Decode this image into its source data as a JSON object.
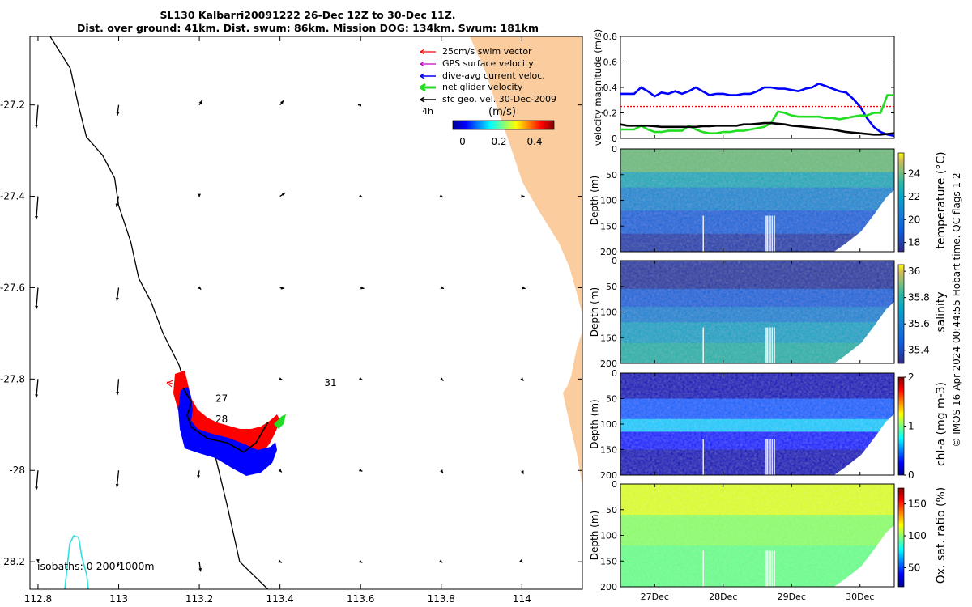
{
  "title_line1": "SL130 Kalbarri20091222 26-Dec 12Z to 30-Dec 11Z.",
  "title_line2": "Dist. over ground: 41km. Dist. swum: 86km. Mission DOG: 134km. Swum: 181km",
  "credit": "© IMOS 16-Apr-2024 00:44:55 Hobart time. QC flags 1  2",
  "colors": {
    "land": "#FACC9E",
    "swim": "#ff0000",
    "gps": "#cc00cc",
    "current": "#0000ff",
    "net": "#22dd22",
    "geo": "#000000",
    "isobath": "#33dddd"
  },
  "chart_data": [
    {
      "type": "map",
      "name": "trajectory-map",
      "xlim": [
        112.78,
        114.15
      ],
      "ylim": [
        -28.26,
        -27.05
      ],
      "x_ticks": [
        112.8,
        113,
        113.2,
        113.4,
        113.6,
        113.8,
        114
      ],
      "x_tick_labels": [
        "112.8",
        "113",
        "113.2",
        "113.4",
        "113.6",
        "113.8",
        "114"
      ],
      "y_ticks": [
        -27.2,
        -27.4,
        -27.6,
        -27.8,
        -28,
        -28.2
      ],
      "y_tick_labels": [
        "-27.2",
        "-27.4",
        "-27.6",
        "-27.8",
        "-28",
        "-28.2"
      ],
      "legend": [
        {
          "label": "25cm/s swim vector",
          "color": "#ff0000"
        },
        {
          "label": "GPS surface velocity",
          "color": "#cc00cc"
        },
        {
          "label": "dive-avg current veloc.",
          "color": "#0000ff"
        },
        {
          "label": "net glider velocity",
          "color": "#22dd22"
        },
        {
          "label": "sfc geo. vel. 30-Dec-2009",
          "color": "#000000"
        }
      ],
      "legend_placement": "top-right",
      "colorbar": {
        "title": "(m/s)",
        "ticks": [
          "0",
          "0.2",
          "0.4"
        ],
        "range": [
          0,
          0.55
        ],
        "colormap": "jet"
      },
      "label_4h": "4h",
      "isobaths_label": "isobaths: 0   200  1000m",
      "day_labels": [
        {
          "text": "27",
          "lon": 113.24,
          "lat": -27.85
        },
        {
          "text": "28",
          "lon": 113.24,
          "lat": -27.895
        },
        {
          "text": "31",
          "lon": 113.51,
          "lat": -27.815
        }
      ],
      "coast_200m": [
        [
          112.83,
          -27.05
        ],
        [
          112.88,
          -27.12
        ],
        [
          112.9,
          -27.2
        ],
        [
          112.92,
          -27.27
        ],
        [
          112.96,
          -27.31
        ],
        [
          112.99,
          -27.36
        ],
        [
          113,
          -27.42
        ],
        [
          113.03,
          -27.5
        ],
        [
          113.05,
          -27.58
        ],
        [
          113.08,
          -27.63
        ],
        [
          113.11,
          -27.7
        ],
        [
          113.15,
          -27.77
        ],
        [
          113.17,
          -27.83
        ],
        [
          113.2,
          -27.89
        ],
        [
          113.24,
          -27.97
        ],
        [
          113.27,
          -28.08
        ],
        [
          113.3,
          -28.2
        ],
        [
          113.37,
          -28.26
        ]
      ],
      "glider_track": [
        [
          113.16,
          -27.82
        ],
        [
          113.18,
          -27.85
        ],
        [
          113.17,
          -27.88
        ],
        [
          113.18,
          -27.905
        ],
        [
          113.22,
          -27.93
        ],
        [
          113.27,
          -27.94
        ],
        [
          113.31,
          -27.96
        ],
        [
          113.34,
          -27.94
        ],
        [
          113.37,
          -27.895
        ]
      ],
      "surface_vectors": {
        "lons": [
          112.8,
          113,
          113.2,
          113.4,
          113.6,
          113.8,
          114
        ],
        "lats": [
          -27.2,
          -27.4,
          -27.6,
          -27.8,
          -28,
          -28.2
        ],
        "u": [
          [
            -0.02,
            -0.015,
            0.03,
            0.04,
            -0.03,
            null,
            null
          ],
          [
            -0.02,
            -0.025,
            0.0,
            0.06,
            0.02,
            0.02,
            0.03
          ],
          [
            -0.02,
            -0.02,
            0.02,
            0.05,
            0.04,
            0.03,
            0.04
          ],
          [
            -0.02,
            -0.015,
            null,
            0.03,
            0.02,
            0.025,
            0.02
          ],
          [
            -0.02,
            -0.02,
            -0.015,
            0.02,
            0.02,
            0.02,
            0.02
          ],
          [
            0.0,
            -0.015,
            0.015,
            0.02,
            0.02,
            0.015,
            0.01
          ]
        ],
        "v": [
          [
            -0.26,
            -0.12,
            0.05,
            0.05,
            0.0,
            null,
            null
          ],
          [
            -0.26,
            -0.12,
            -0.01,
            0.04,
            -0.01,
            -0.01,
            0.0
          ],
          [
            -0.24,
            -0.15,
            -0.02,
            -0.01,
            -0.01,
            -0.01,
            -0.01
          ],
          [
            -0.21,
            -0.18,
            null,
            -0.01,
            -0.01,
            -0.02,
            -0.02
          ],
          [
            -0.22,
            -0.19,
            -0.09,
            -0.02,
            -0.01,
            -0.03,
            -0.04
          ],
          [
            -0.01,
            -0.06,
            -0.11,
            -0.01,
            -0.01,
            -0.01,
            -0.01
          ]
        ]
      }
    },
    {
      "type": "line",
      "name": "velocity-magnitude",
      "ylabel": "velocity magnitude (m/s)",
      "ylim": [
        0,
        0.8
      ],
      "yticks": [
        "0",
        "0.2",
        "0.4",
        "0.6",
        "0.8"
      ],
      "x": [
        0,
        0.1,
        0.2,
        0.3,
        0.4,
        0.5,
        0.6,
        0.7,
        0.8,
        0.9,
        1.0,
        1.1,
        1.2,
        1.3,
        1.4,
        1.5,
        1.6,
        1.7,
        1.8,
        1.9,
        2.0,
        2.1,
        2.2,
        2.3,
        2.4,
        2.5,
        2.6,
        2.7,
        2.8,
        2.9,
        3.0,
        3.1,
        3.2,
        3.3,
        3.4,
        3.5,
        3.6,
        3.7,
        3.8,
        3.9,
        4.0
      ],
      "series": [
        {
          "name": "dive-avg current veloc.",
          "color": "#0000ff",
          "values": [
            0.35,
            0.35,
            0.35,
            0.4,
            0.37,
            0.33,
            0.36,
            0.35,
            0.37,
            0.35,
            0.37,
            0.4,
            0.37,
            0.34,
            0.35,
            0.35,
            0.34,
            0.34,
            0.35,
            0.35,
            0.37,
            0.4,
            0.4,
            0.39,
            0.39,
            0.38,
            0.37,
            0.39,
            0.4,
            0.43,
            0.41,
            0.39,
            0.37,
            0.36,
            0.31,
            0.25,
            0.16,
            0.09,
            0.05,
            0.03,
            0.02
          ]
        },
        {
          "name": "swim",
          "color": "#ff0000",
          "values": [
            0.25,
            0.25,
            0.25,
            0.25,
            0.25,
            0.25,
            0.25,
            0.25,
            0.25,
            0.25,
            0.25,
            0.25,
            0.25,
            0.25,
            0.25,
            0.25,
            0.25,
            0.25,
            0.25,
            0.25,
            0.25,
            0.25,
            0.25,
            0.25,
            0.25,
            0.25,
            0.25,
            0.25,
            0.25,
            0.25,
            0.25,
            0.25,
            0.25,
            0.25,
            0.25,
            0.25,
            0.25,
            0.25,
            0.25,
            0.25,
            0.25
          ]
        },
        {
          "name": "net glider velocity",
          "color": "#22dd22",
          "values": [
            0.07,
            0.07,
            0.07,
            0.1,
            0.07,
            0.05,
            0.05,
            0.06,
            0.06,
            0.06,
            0.1,
            0.07,
            0.05,
            0.04,
            0.04,
            0.05,
            0.05,
            0.06,
            0.06,
            0.07,
            0.08,
            0.09,
            0.12,
            0.21,
            0.2,
            0.18,
            0.17,
            0.17,
            0.17,
            0.17,
            0.16,
            0.16,
            0.15,
            0.16,
            0.17,
            0.18,
            0.18,
            0.2,
            0.2,
            0.34,
            0.34
          ]
        },
        {
          "name": "sfc geo vel",
          "color": "#000000",
          "values": [
            0.11,
            0.1,
            0.1,
            0.1,
            0.1,
            0.095,
            0.09,
            0.09,
            0.09,
            0.09,
            0.09,
            0.09,
            0.095,
            0.095,
            0.1,
            0.1,
            0.1,
            0.1,
            0.11,
            0.11,
            0.115,
            0.12,
            0.12,
            0.115,
            0.11,
            0.1,
            0.095,
            0.09,
            0.085,
            0.08,
            0.075,
            0.07,
            0.06,
            0.05,
            0.045,
            0.04,
            0.035,
            0.03,
            0.03,
            0.035,
            0.04
          ]
        }
      ]
    },
    {
      "type": "heatmap",
      "name": "temperature-section",
      "colorbar_label": "temperature (°C)",
      "cticks": [
        "18",
        "20",
        "22",
        "24"
      ],
      "clim": [
        17.2,
        25.8
      ],
      "ylabel": "Depth (m)",
      "yticks": [
        "0",
        "50",
        "100",
        "150",
        "200"
      ],
      "ylim": [
        0,
        200
      ],
      "layers": [
        [
          0,
          45,
          24.0
        ],
        [
          45,
          75,
          22.4
        ],
        [
          75,
          120,
          21.0
        ],
        [
          120,
          165,
          19.5
        ],
        [
          165,
          200,
          18.0
        ]
      ]
    },
    {
      "type": "heatmap",
      "name": "salinity-section",
      "colorbar_label": "salinity",
      "cticks": [
        "35.4",
        "35.6",
        "35.8",
        "36"
      ],
      "clim": [
        35.3,
        36.05
      ],
      "ylabel": "Depth (m)",
      "yticks": [
        "0",
        "50",
        "100",
        "150",
        "200"
      ],
      "ylim": [
        0,
        200
      ],
      "layers": [
        [
          0,
          55,
          35.35
        ],
        [
          55,
          90,
          35.5
        ],
        [
          90,
          120,
          35.62
        ],
        [
          120,
          160,
          35.72
        ],
        [
          160,
          200,
          35.8
        ]
      ]
    },
    {
      "type": "heatmap",
      "name": "chla-section",
      "colorbar_label": "chl-a (mg m-3)",
      "cticks": [
        "0",
        "1",
        "2"
      ],
      "clim": [
        0,
        2
      ],
      "ylabel": "Depth (m)",
      "yticks": [
        "0",
        "50",
        "100",
        "150",
        "200"
      ],
      "ylim": [
        0,
        200
      ],
      "layers": [
        [
          0,
          50,
          0.1
        ],
        [
          50,
          90,
          0.45
        ],
        [
          90,
          115,
          0.65
        ],
        [
          115,
          150,
          0.3
        ],
        [
          150,
          200,
          0.1
        ]
      ]
    },
    {
      "type": "heatmap",
      "name": "oxygen-section",
      "colorbar_label": "Ox. sat. ratio (%)",
      "cticks": [
        "50",
        "100",
        "150"
      ],
      "clim": [
        20,
        175
      ],
      "ylabel": "Depth (m)",
      "yticks": [
        "0",
        "50",
        "100",
        "150",
        "200"
      ],
      "ylim": [
        0,
        200
      ],
      "layers": [
        [
          0,
          60,
          112
        ],
        [
          60,
          120,
          100
        ],
        [
          120,
          200,
          95
        ]
      ]
    }
  ],
  "time_axis": {
    "ticks": [
      "27Dec",
      "28Dec",
      "29Dec",
      "30Dec"
    ],
    "tick_positions": [
      0.5,
      1.5,
      2.5,
      3.5
    ],
    "range": [
      0,
      4.0
    ]
  }
}
